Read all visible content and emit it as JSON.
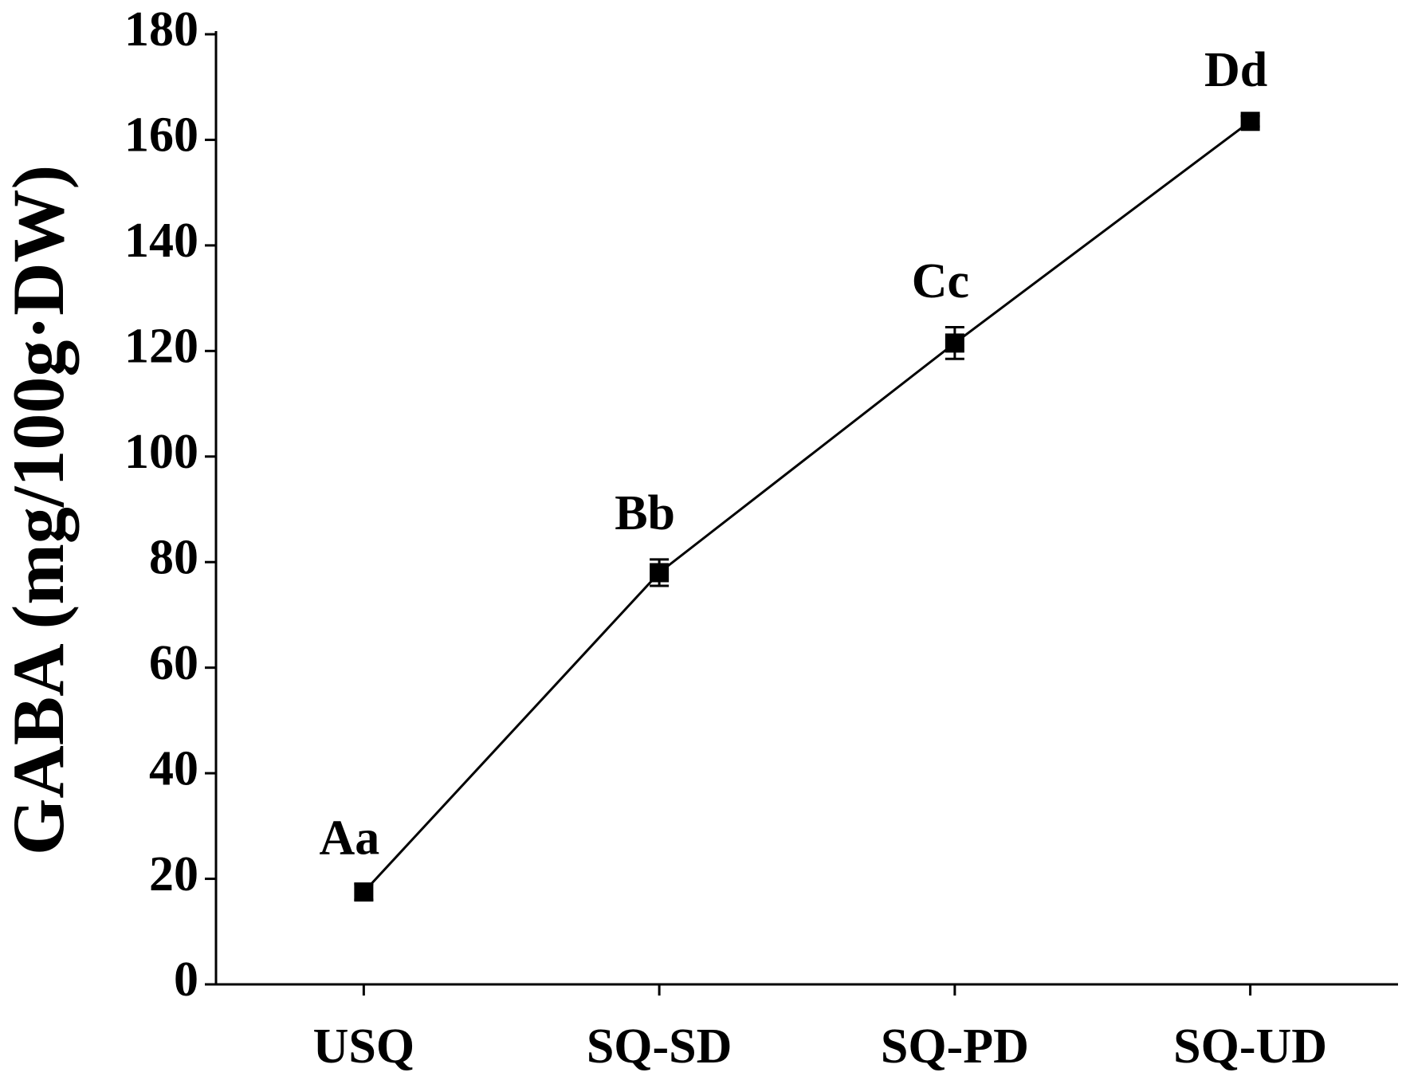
{
  "chart_data": {
    "type": "line",
    "y_label": "GABA (mg/100g·DW)",
    "categories": [
      "USQ",
      "SQ-SD",
      "SQ-PD",
      "SQ-UD"
    ],
    "series": [
      {
        "values": [
          17.5,
          78,
          121.5,
          163.5
        ],
        "errors": [
          1.5,
          2.5,
          3,
          1
        ],
        "color": "#000000",
        "annotations": [
          "Aa",
          "Bb",
          "Cc",
          "Dd"
        ]
      }
    ],
    "ylim": [
      0,
      180
    ],
    "yticks": [
      0,
      20,
      40,
      60,
      80,
      100,
      120,
      140,
      160,
      180
    ],
    "grid": false
  }
}
